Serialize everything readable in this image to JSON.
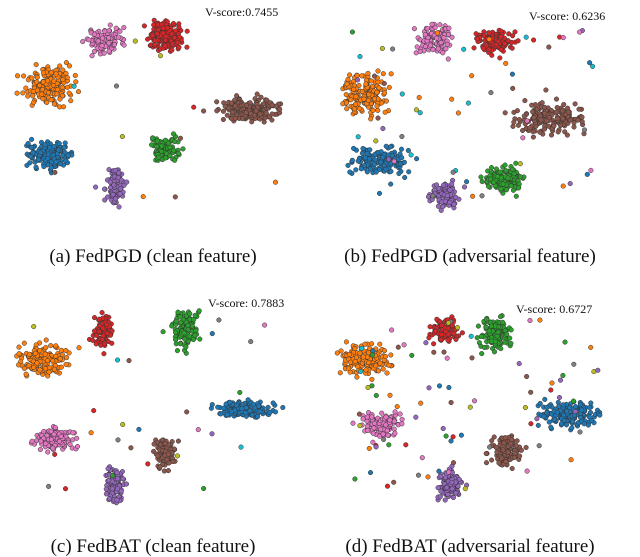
{
  "panels": [
    {
      "score": "V-score:0.7455",
      "caption": "(a) FedPGD (clean feature)"
    },
    {
      "score": "V-score: 0.6236",
      "caption": "(b) FedPGD (adversarial feature)"
    },
    {
      "score": "V-score: 0.7883",
      "caption": "(c) FedBAT (clean feature)"
    },
    {
      "score": "V-score: 0.6727",
      "caption": "(d) FedBAT (adversarial feature)"
    }
  ]
}
